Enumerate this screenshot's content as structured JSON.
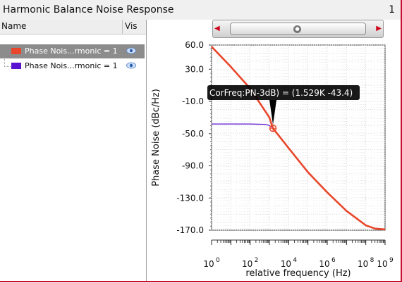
{
  "window": {
    "title": "Harmonic Balance Noise Response",
    "number": "1"
  },
  "sidebar": {
    "headers": {
      "name": "Name",
      "vis": "Vis"
    },
    "items": [
      {
        "label": "Phase Nois...rmonic = 1",
        "color": "#e8472b",
        "selected": true
      },
      {
        "label": "Phase Nois...rmonic = 1",
        "color": "#5a12d0",
        "selected": false
      }
    ]
  },
  "chart_data": {
    "type": "line",
    "xlabel": "relative frequency (Hz)",
    "ylabel": "Phase Noise (dBc/Hz)",
    "xscale": "log",
    "xlim": [
      1,
      1000000000
    ],
    "ylim": [
      -170,
      60
    ],
    "yticks": [
      {
        "value": 60,
        "label": "60.0"
      },
      {
        "value": 30,
        "label": "30.0"
      },
      {
        "value": -10,
        "label": "-10.0"
      },
      {
        "value": -50,
        "label": "-50.0"
      },
      {
        "value": -90,
        "label": "-90.0"
      },
      {
        "value": -130,
        "label": "-130.0"
      },
      {
        "value": -170,
        "label": "-170.0"
      }
    ],
    "xticks": [
      {
        "exp": 0,
        "base": "10",
        "sup": "0"
      },
      {
        "exp": 2,
        "base": "10",
        "sup": "2"
      },
      {
        "exp": 4,
        "base": "10",
        "sup": "4"
      },
      {
        "exp": 6,
        "base": "10",
        "sup": "6"
      },
      {
        "exp": 8,
        "base": "10",
        "sup": "8"
      },
      {
        "exp": 9,
        "base": "10",
        "sup": "9"
      }
    ],
    "grid": true,
    "series": [
      {
        "color": "#e8472b",
        "x": [
          1,
          10,
          100,
          1000,
          1529,
          10000,
          100000,
          1000000,
          10000000,
          100000000,
          300000000,
          1000000000
        ],
        "y": [
          58,
          33,
          6,
          -30,
          -43.4,
          -68,
          -98,
          -123,
          -146,
          -164,
          -168,
          -169
        ]
      },
      {
        "color": "#5a12d0",
        "x": [
          1,
          10,
          100,
          600,
          1000,
          1529
        ],
        "y": [
          -38,
          -38,
          -38,
          -38.5,
          -40,
          -43.4
        ]
      }
    ],
    "marker": {
      "x": 1529,
      "y": -43.4,
      "label": "CorFreq:PN-3dB) = (1.529K -43.4)"
    }
  }
}
